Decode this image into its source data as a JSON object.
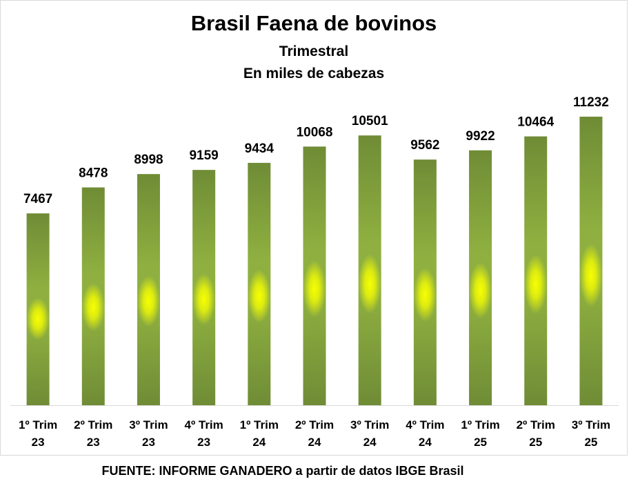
{
  "chart_data": {
    "type": "bar",
    "title": "Brasil Faena de bovinos",
    "subtitle_lines": [
      "Trimestral",
      "En miles de cabezas"
    ],
    "categories": [
      [
        "1º Trim",
        "23"
      ],
      [
        "2º Trim",
        "23"
      ],
      [
        "3º Trim",
        "23"
      ],
      [
        "4º Trim",
        "23"
      ],
      [
        "1º Trim",
        "24"
      ],
      [
        "2º Trim",
        "24"
      ],
      [
        "3º Trim",
        "24"
      ],
      [
        "4º Trim",
        "24"
      ],
      [
        "1º Trim",
        "25"
      ],
      [
        "2º Trim",
        "25"
      ],
      [
        "3º Trim",
        "25"
      ]
    ],
    "values": [
      7467,
      8478,
      8998,
      9159,
      9434,
      10068,
      10501,
      9562,
      9922,
      10464,
      11232
    ],
    "ylim": [
      0,
      11232
    ],
    "xlabel": "",
    "ylabel": "",
    "grid": false,
    "legend": "none"
  },
  "colors": {
    "bar_dark": "#6f8c36",
    "bar_mid": "#8fb040",
    "bar_glow": "#f7ff00"
  },
  "footer": {
    "source": "FUENTE: INFORME GANADERO a partir de datos IBGE Brasil"
  }
}
